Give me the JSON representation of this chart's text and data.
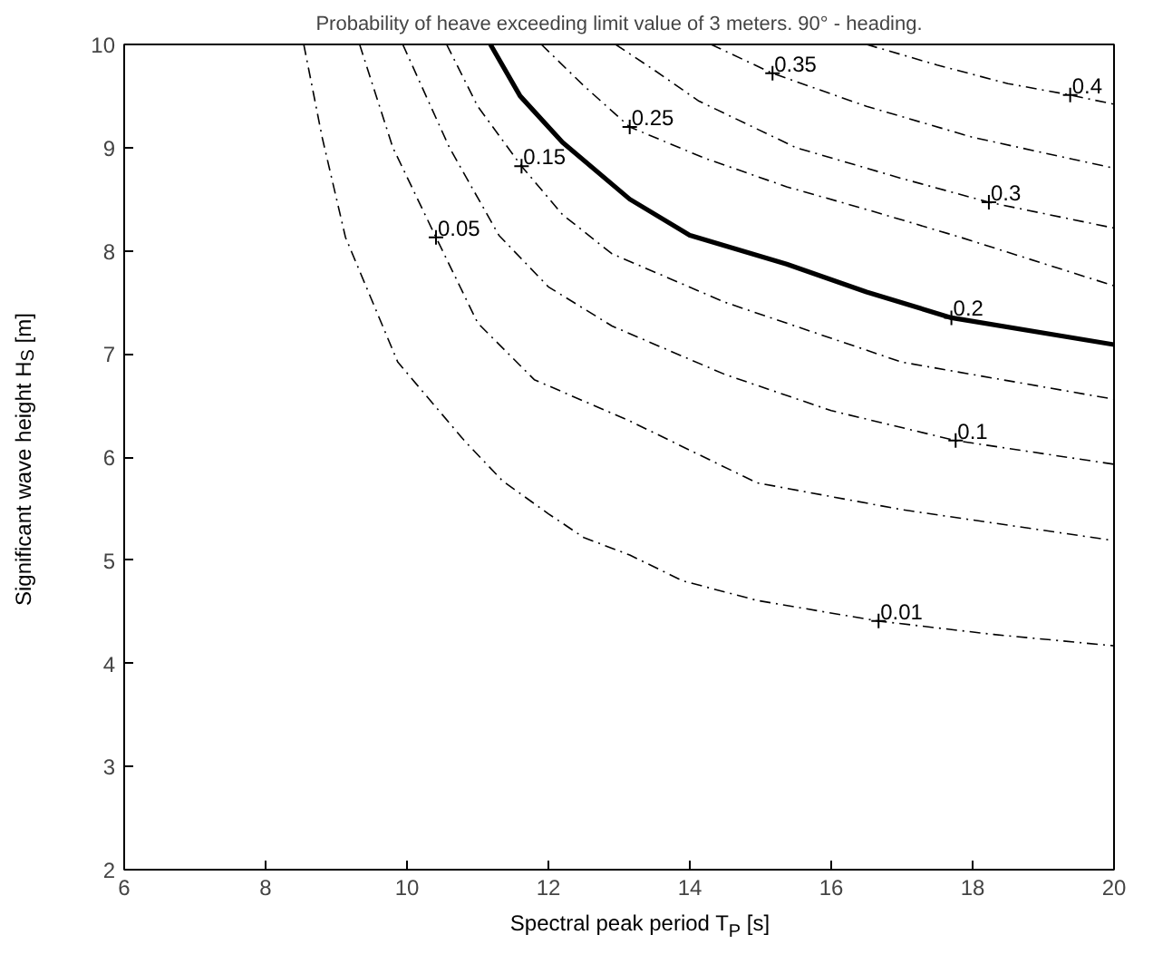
{
  "chart_data": {
    "type": "line",
    "title": "Probability of heave exceeding limit value of 3 meters. 90° - heading.",
    "xlabel": "Spectral peak period T$_{P}$ [s]",
    "ylabel": "Significant wave height H$_{S}$ [m]",
    "xlim": [
      6,
      20
    ],
    "ylim": [
      2,
      10
    ],
    "xticks": [
      6,
      8,
      10,
      12,
      14,
      16,
      18,
      20
    ],
    "yticks": [
      2,
      3,
      4,
      5,
      6,
      7,
      8,
      9,
      10
    ],
    "grid": false,
    "marker": "none",
    "series": [
      {
        "color": "#000000",
        "line_style": "dashed",
        "x": [
          8.54,
          8.8,
          9.13,
          9.87,
          10.81,
          11.35,
          12.0,
          12.5,
          13.15,
          13.9,
          14.95,
          16.67,
          18.3,
          20
        ],
        "values": [
          10,
          9.1,
          8.13,
          6.92,
          6.16,
          5.77,
          5.45,
          5.22,
          5.05,
          4.8,
          4.61,
          4.41,
          4.28,
          4.17
        ]
      },
      {
        "color": "#000000",
        "line_style": "dashed",
        "x": [
          9.33,
          9.8,
          10.41,
          11.0,
          11.8,
          13.15,
          14.95,
          17.0,
          20
        ],
        "values": [
          10,
          9.0,
          8.13,
          7.3,
          6.75,
          6.35,
          5.75,
          5.49,
          5.19
        ]
      },
      {
        "color": "#000000",
        "line_style": "dashed",
        "x": [
          9.94,
          10.6,
          11.3,
          12.0,
          12.9,
          14.5,
          16.0,
          17.76,
          20
        ],
        "values": [
          10,
          9.0,
          8.15,
          7.65,
          7.27,
          6.8,
          6.45,
          6.16,
          5.93
        ]
      },
      {
        "color": "#000000",
        "line_style": "dashed",
        "x": [
          10.56,
          11.0,
          11.62,
          12.2,
          12.9,
          14.5,
          17.0,
          20
        ],
        "values": [
          10,
          9.4,
          8.82,
          8.35,
          7.97,
          7.5,
          6.92,
          6.56
        ]
      },
      {
        "color": "#000000",
        "line_style": "solid",
        "x": [
          11.18,
          11.6,
          12.2,
          13.15,
          14.0,
          15.37,
          16.5,
          17.7,
          20
        ],
        "values": [
          10,
          9.5,
          9.05,
          8.5,
          8.15,
          7.87,
          7.6,
          7.35,
          7.09
        ]
      },
      {
        "color": "#000000",
        "line_style": "dashed",
        "x": [
          11.9,
          12.5,
          13.15,
          14.2,
          15.37,
          16.6,
          17.83,
          20
        ],
        "values": [
          10,
          9.6,
          9.2,
          8.9,
          8.62,
          8.38,
          8.13,
          7.66
        ]
      },
      {
        "color": "#000000",
        "line_style": "dashed",
        "x": [
          12.95,
          13.5,
          14.13,
          15.5,
          17.0,
          18.23,
          20
        ],
        "values": [
          10,
          9.75,
          9.45,
          9.0,
          8.7,
          8.47,
          8.22
        ]
      },
      {
        "color": "#000000",
        "line_style": "dashed",
        "x": [
          14.3,
          15.17,
          16.5,
          18.0,
          20
        ],
        "values": [
          10,
          9.72,
          9.4,
          9.1,
          8.8
        ]
      },
      {
        "color": "#000000",
        "line_style": "dashed",
        "x": [
          16.5,
          17.5,
          18.5,
          19.38,
          20
        ],
        "values": [
          10,
          9.8,
          9.62,
          9.51,
          9.42
        ]
      }
    ],
    "annotations": [
      {
        "text": "0.01",
        "x": 16.67,
        "y": 4.41
      },
      {
        "text": "0.05",
        "x": 10.41,
        "y": 8.13
      },
      {
        "text": "0.1",
        "x": 17.76,
        "y": 6.16
      },
      {
        "text": "0.15",
        "x": 11.62,
        "y": 8.82
      },
      {
        "text": "0.2",
        "x": 17.7,
        "y": 7.35
      },
      {
        "text": "0.25",
        "x": 13.15,
        "y": 9.2
      },
      {
        "text": "0.3",
        "x": 18.23,
        "y": 8.47
      },
      {
        "text": "0.35",
        "x": 15.17,
        "y": 9.72
      },
      {
        "text": "0.4",
        "x": 19.38,
        "y": 9.51
      }
    ]
  }
}
